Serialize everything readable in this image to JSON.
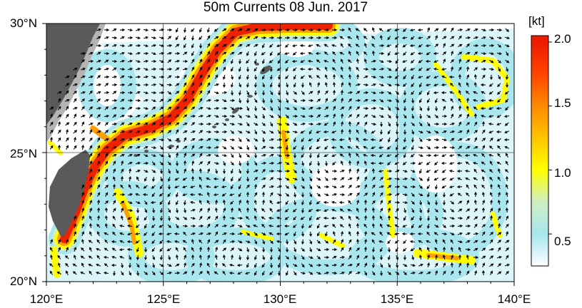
{
  "title": "50m Currents  08 Jun. 2017",
  "axes": {
    "lon_labels": [
      "120°E",
      "125°E",
      "130°E",
      "135°E",
      "140°E"
    ],
    "lat_labels": [
      "30°N",
      "25°N",
      "20°N"
    ],
    "lon_range": [
      120,
      140
    ],
    "lat_range": [
      20,
      30
    ]
  },
  "colorbar": {
    "unit": "[kt]",
    "tick_labels": [
      "2.0",
      "1.5",
      "1.0",
      "0.5"
    ],
    "ticks": [
      2.0,
      1.5,
      1.0,
      0.5
    ],
    "range": [
      0.25,
      2.05
    ],
    "stops": [
      {
        "v": 0.25,
        "c": "#ffffff"
      },
      {
        "v": 0.35,
        "c": "#d8f4f8"
      },
      {
        "v": 0.5,
        "c": "#a9e6ee"
      },
      {
        "v": 0.75,
        "c": "#cfeec4"
      },
      {
        "v": 1.0,
        "c": "#ffff00"
      },
      {
        "v": 1.25,
        "c": "#ffc400"
      },
      {
        "v": 1.5,
        "c": "#ff8a00"
      },
      {
        "v": 1.75,
        "c": "#ff4400"
      },
      {
        "v": 2.0,
        "c": "#ee1b00"
      }
    ]
  },
  "colors": {
    "land": "#5a5a5a",
    "land_shadow": "#b4b4b4",
    "grid": "#000000",
    "arrow": "#000000"
  }
}
